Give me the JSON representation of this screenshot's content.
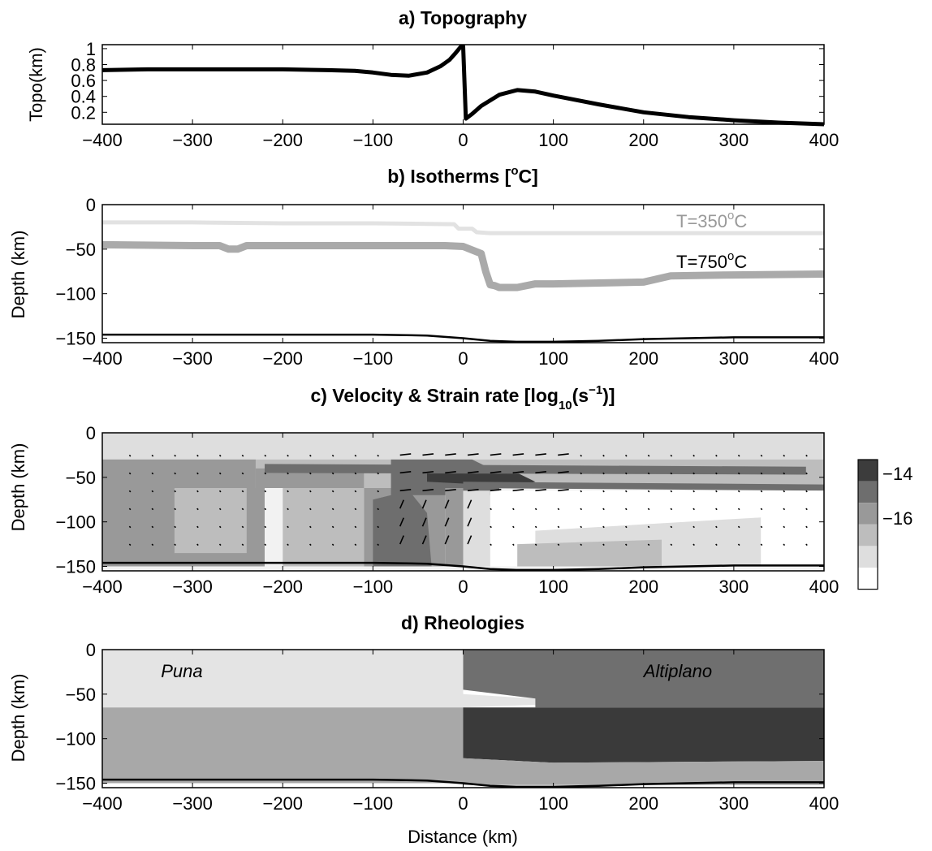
{
  "chart_data": [
    {
      "panel": "a",
      "type": "line",
      "title": "a) Topography",
      "xlabel": "",
      "ylabel": "Topo(km)",
      "xlim": [
        -400,
        400
      ],
      "ylim": [
        0.05,
        1.05
      ],
      "xticks": [
        -400,
        -300,
        -200,
        -100,
        0,
        100,
        200,
        300,
        400
      ],
      "yticks": [
        0.2,
        0.4,
        0.6,
        0.8,
        1
      ],
      "series": [
        {
          "color": "#000000",
          "x": [
            -400,
            -350,
            -300,
            -250,
            -200,
            -150,
            -120,
            -100,
            -80,
            -60,
            -40,
            -25,
            -15,
            -8,
            -3,
            0,
            3,
            10,
            20,
            40,
            60,
            80,
            100,
            150,
            200,
            250,
            300,
            350,
            400
          ],
          "y": [
            0.73,
            0.74,
            0.74,
            0.74,
            0.74,
            0.73,
            0.72,
            0.7,
            0.67,
            0.66,
            0.7,
            0.78,
            0.86,
            0.95,
            1.02,
            1.03,
            0.12,
            0.18,
            0.28,
            0.42,
            0.48,
            0.46,
            0.41,
            0.3,
            0.2,
            0.14,
            0.1,
            0.07,
            0.05
          ]
        }
      ]
    },
    {
      "panel": "b",
      "type": "line",
      "title": "b) Isotherms [",
      "title_sup": "o",
      "title_end": "C]",
      "xlabel": "",
      "ylabel": "Depth (km)",
      "xlim": [
        -400,
        400
      ],
      "ylim": [
        -155,
        0
      ],
      "xticks": [
        -400,
        -300,
        -200,
        -100,
        0,
        100,
        200,
        300,
        400
      ],
      "yticks": [
        0,
        -50,
        -100,
        -150
      ],
      "annotations": [
        {
          "label": "T=350",
          "sup": "o",
          "tail": "C",
          "color": "#999999"
        },
        {
          "label": "T=750",
          "sup": "o",
          "tail": "C",
          "color": "#000000"
        }
      ],
      "series": [
        {
          "name": "T=350°C",
          "color": "#e2e2e2",
          "x": [
            -400,
            -300,
            -200,
            -100,
            -10,
            -5,
            10,
            15,
            30,
            100,
            200,
            300,
            400
          ],
          "y": [
            -20,
            -20,
            -21,
            -21,
            -22,
            -27,
            -27,
            -31,
            -32,
            -32,
            -32,
            -32,
            -32
          ]
        },
        {
          "name": "T=750°C",
          "color": "#aaaaaa",
          "x": [
            -400,
            -300,
            -270,
            -260,
            -250,
            -240,
            -200,
            -100,
            -20,
            0,
            20,
            25,
            30,
            35,
            40,
            60,
            80,
            100,
            200,
            230,
            300,
            400
          ],
          "y": [
            -45,
            -46,
            -46,
            -50,
            -50,
            -46,
            -46,
            -46,
            -46,
            -47,
            -55,
            -75,
            -90,
            -91,
            -93,
            -93,
            -89,
            -89,
            -87,
            -80,
            -79,
            -78
          ]
        },
        {
          "name": "base",
          "color": "#000000",
          "x": [
            -400,
            -300,
            -200,
            -100,
            -40,
            0,
            30,
            60,
            100,
            150,
            200,
            300,
            400
          ],
          "y": [
            -146,
            -146,
            -146,
            -146,
            -147,
            -150,
            -153,
            -154,
            -154,
            -153,
            -151,
            -149,
            -149
          ]
        }
      ]
    },
    {
      "panel": "c",
      "type": "heatmap",
      "title": "c) Velocity & Strain rate [log",
      "title_sub": "10",
      "title_end": "(s",
      "title_sup": "−1",
      "title_close": ")]",
      "xlabel": "",
      "ylabel": "Depth (km)",
      "xlim": [
        -400,
        400
      ],
      "ylim": [
        -155,
        0
      ],
      "xticks": [
        -400,
        -300,
        -200,
        -100,
        0,
        100,
        200,
        300,
        400
      ],
      "yticks": [
        0,
        -50,
        -100,
        -150
      ],
      "colorbar": {
        "ticks": [
          "−14",
          "−16"
        ],
        "levels": [
          -13.5,
          -14.2,
          -14.8,
          -15.4,
          -16.0,
          -16.6
        ],
        "colors": [
          "#3c3c3c",
          "#6e6e6e",
          "#999999",
          "#bdbdbd",
          "#dedede",
          "#ffffff"
        ]
      },
      "regions": [
        {
          "level": -15.4,
          "poly": [
            [
              -400,
              0
            ],
            [
              400,
              0
            ],
            [
              400,
              -62
            ],
            [
              -400,
              -62
            ]
          ]
        },
        {
          "level": -16.0,
          "poly": [
            [
              -400,
              0
            ],
            [
              400,
              0
            ],
            [
              400,
              -30
            ],
            [
              -400,
              -30
            ]
          ]
        },
        {
          "level": -14.8,
          "poly": [
            [
              -400,
              -30
            ],
            [
              -230,
              -30
            ],
            [
              -230,
              -62
            ],
            [
              -400,
              -62
            ]
          ]
        },
        {
          "level": -14.8,
          "poly": [
            [
              -400,
              -62
            ],
            [
              -220,
              -62
            ],
            [
              -220,
              -150
            ],
            [
              -400,
              -150
            ]
          ]
        },
        {
          "level": -15.4,
          "poly": [
            [
              -320,
              -62
            ],
            [
              -240,
              -62
            ],
            [
              -240,
              -135
            ],
            [
              -320,
              -135
            ]
          ]
        },
        {
          "level": -15.4,
          "poly": [
            [
              -200,
              -62
            ],
            [
              -110,
              -62
            ],
            [
              -110,
              -150
            ],
            [
              -200,
              -150
            ]
          ]
        },
        {
          "level": -14.8,
          "poly": [
            [
              -230,
              -40
            ],
            [
              -110,
              -40
            ],
            [
              -110,
              -62
            ],
            [
              -230,
              -62
            ]
          ]
        },
        {
          "level": -14.8,
          "poly": [
            [
              -110,
              -62
            ],
            [
              -20,
              -62
            ],
            [
              -20,
              -150
            ],
            [
              -110,
              -150
            ]
          ]
        },
        {
          "level": -14.2,
          "poly": [
            [
              -100,
              -75
            ],
            [
              -60,
              -65
            ],
            [
              -40,
              -90
            ],
            [
              -35,
              -150
            ],
            [
              -100,
              -150
            ]
          ]
        },
        {
          "level": -14.2,
          "poly": [
            [
              -80,
              -30
            ],
            [
              10,
              -30
            ],
            [
              40,
              -45
            ],
            [
              40,
              -70
            ],
            [
              -80,
              -70
            ]
          ]
        },
        {
          "level": -13.5,
          "poly": [
            [
              -40,
              -40
            ],
            [
              60,
              -45
            ],
            [
              80,
              -55
            ],
            [
              60,
              -60
            ],
            [
              -40,
              -55
            ]
          ]
        },
        {
          "level": -14.8,
          "poly": [
            [
              -20,
              -62
            ],
            [
              0,
              -62
            ],
            [
              0,
              -150
            ],
            [
              -20,
              -150
            ]
          ]
        },
        {
          "level": -14.2,
          "poly": [
            [
              -220,
              -35
            ],
            [
              380,
              -38
            ],
            [
              380,
              -47
            ],
            [
              -220,
              -45
            ]
          ]
        },
        {
          "level": -14.2,
          "poly": [
            [
              0,
              -55
            ],
            [
              400,
              -58
            ],
            [
              400,
              -65
            ],
            [
              0,
              -62
            ]
          ]
        },
        {
          "level": -16.6,
          "poly": [
            [
              30,
              -65
            ],
            [
              400,
              -65
            ],
            [
              400,
              -150
            ],
            [
              30,
              -150
            ]
          ]
        },
        {
          "level": -16.0,
          "poly": [
            [
              0,
              -65
            ],
            [
              30,
              -65
            ],
            [
              30,
              -150
            ],
            [
              0,
              -150
            ]
          ]
        },
        {
          "level": -16.0,
          "poly": [
            [
              80,
              -110
            ],
            [
              330,
              -95
            ],
            [
              330,
              -150
            ],
            [
              80,
              -150
            ]
          ]
        },
        {
          "level": -15.4,
          "poly": [
            [
              60,
              -125
            ],
            [
              220,
              -120
            ],
            [
              220,
              -150
            ],
            [
              60,
              -150
            ]
          ]
        },
        {
          "level": -16.6,
          "poly": [
            [
              340,
              -110
            ],
            [
              400,
              -110
            ],
            [
              400,
              -150
            ],
            [
              340,
              -150
            ]
          ]
        }
      ]
    },
    {
      "panel": "d",
      "type": "heatmap",
      "title": "d) Rheologies",
      "xlabel": "Distance (km)",
      "ylabel": "Depth (km)",
      "xlim": [
        -400,
        400
      ],
      "ylim": [
        -155,
        0
      ],
      "xticks": [
        -400,
        -300,
        -200,
        -100,
        0,
        100,
        200,
        300,
        400
      ],
      "yticks": [
        0,
        -50,
        -100,
        -150
      ],
      "labels": [
        {
          "text": "Puna",
          "x": -335,
          "y": -20
        },
        {
          "text": "Altiplano",
          "x": 200,
          "y": -20
        }
      ],
      "regions": [
        {
          "color": "#e4e4e4",
          "poly": [
            [
              -400,
              0
            ],
            [
              0,
              0
            ],
            [
              0,
              -50
            ],
            [
              80,
              -55
            ],
            [
              80,
              -62
            ],
            [
              0,
              -65
            ],
            [
              -400,
              -65
            ]
          ]
        },
        {
          "color": "#6f6f6f",
          "poly": [
            [
              0,
              0
            ],
            [
              400,
              0
            ],
            [
              400,
              -65
            ],
            [
              80,
              -65
            ],
            [
              80,
              -55
            ],
            [
              0,
              -45
            ]
          ]
        },
        {
          "color": "#a8a8a8",
          "poly": [
            [
              -400,
              -65
            ],
            [
              0,
              -65
            ],
            [
              0,
              -150
            ],
            [
              -400,
              -150
            ]
          ]
        },
        {
          "color": "#3a3a3a",
          "poly": [
            [
              0,
              -65
            ],
            [
              400,
              -65
            ],
            [
              400,
              -125
            ],
            [
              100,
              -127
            ],
            [
              0,
              -122
            ]
          ]
        },
        {
          "color": "#a8a8a8",
          "poly": [
            [
              0,
              -122
            ],
            [
              100,
              -127
            ],
            [
              400,
              -125
            ],
            [
              400,
              -152
            ],
            [
              0,
              -152
            ]
          ]
        }
      ]
    }
  ]
}
